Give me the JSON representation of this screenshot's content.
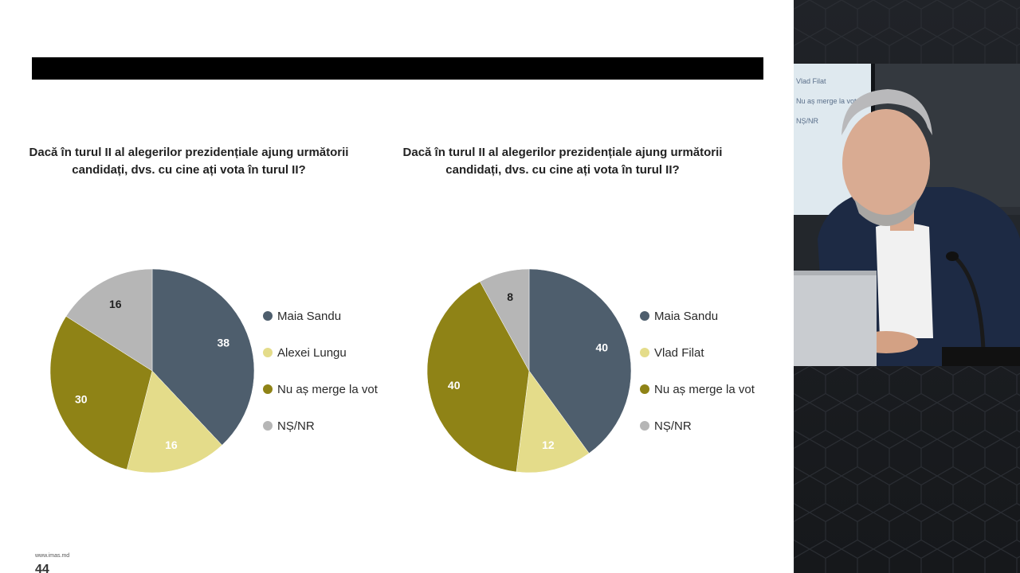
{
  "chart_data": [
    {
      "type": "pie",
      "title": "Dacă în turul II al alegerilor prezidențiale ajung următorii candidați, dvs. cu cine ați vota în turul II?",
      "labels": [
        "Maia Sandu",
        "Alexei Lungu",
        "Nu aș merge la vot",
        "NȘ/NR"
      ],
      "values": [
        38,
        16,
        30,
        16
      ],
      "colors": [
        "#4e5e6d",
        "#e4dc8a",
        "#8f8316",
        "#b6b6b6"
      ],
      "label_colors": [
        "#ffffff",
        "#ffffff",
        "#ffffff",
        "#222222"
      ],
      "legend_position": "right"
    },
    {
      "type": "pie",
      "title": "Dacă în turul II al alegerilor prezidențiale ajung următorii candidați, dvs. cu cine ați vota în turul II?",
      "labels": [
        "Maia Sandu",
        "Vlad Filat",
        "Nu aș merge la vot",
        "NȘ/NR"
      ],
      "values": [
        40,
        12,
        40,
        8
      ],
      "colors": [
        "#4e5e6d",
        "#e4dc8a",
        "#8f8316",
        "#b6b6b6"
      ],
      "label_colors": [
        "#ffffff",
        "#ffffff",
        "#ffffff",
        "#222222"
      ],
      "legend_position": "right"
    }
  ],
  "footer": {
    "url": "www.imas.md",
    "page": "44"
  },
  "video": {
    "screen_lines": [
      "Vlad Filat",
      "Nu aș merge la vot",
      "NȘ/NR"
    ]
  }
}
